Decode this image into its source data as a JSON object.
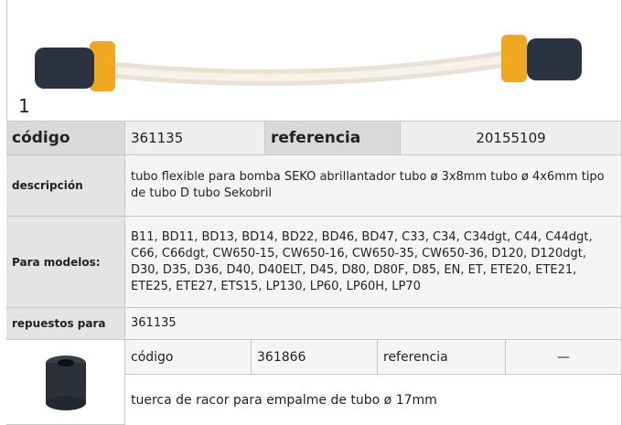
{
  "image_label": "1",
  "main": {
    "code_label": "código",
    "code": "361135",
    "ref_label": "referencia",
    "ref": "20155109",
    "desc_label": "descripción",
    "desc": "tubo flexible para bomba  SEKO abrillantador tubo ø 3x8mm tubo ø 4x6mm tipo de tubo D tubo Sekobril",
    "models_label": "Para modelos:",
    "models": "B11, BD11, BD13, BD14, BD22, BD46, BD47, C33, C34, C34dgt, C44, C44dgt, C66, C66dgt, CW650-15, CW650-16, CW650-35, CW650-36, D120, D120dgt, D30, D35, D36, D40, D40ELT, D45, D80, D80F, D85, EN, ET, ETE20, ETE21, ETE25, ETE27, ETS15, LP130, LP60, LP60H, LP70",
    "spares_label": "repuestos para",
    "spares": "361135"
  },
  "spare": {
    "code_label": "código",
    "code": "361866",
    "ref_label": "referencia",
    "ref": "—",
    "desc": "tuerca de racor  para empalme de tubo ø 17mm"
  }
}
